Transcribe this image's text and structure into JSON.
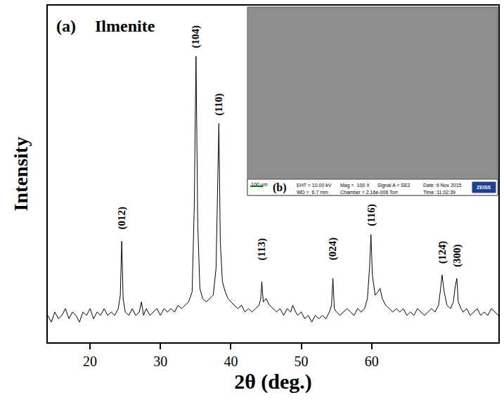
{
  "chart_data": {
    "type": "line",
    "title": "Ilmenite",
    "panel_label": "(a)",
    "x_label": "2θ (deg.)",
    "y_label": "Intensity",
    "color": "#000000",
    "grid": false,
    "tick_labels": "x",
    "xlim": [
      14,
      78
    ],
    "xticks": [
      20,
      30,
      40,
      50,
      60
    ],
    "ylim": [
      0,
      100
    ],
    "x": [
      14.0,
      14.5,
      15.0,
      15.5,
      16.0,
      16.5,
      17.0,
      17.5,
      18.0,
      18.5,
      19.0,
      19.5,
      20.0,
      20.5,
      21.0,
      21.5,
      22.0,
      22.5,
      23.0,
      23.5,
      24.0,
      24.3,
      24.5,
      24.7,
      25.0,
      25.5,
      26.0,
      26.5,
      27.0,
      27.3,
      27.6,
      28.0,
      28.5,
      29.0,
      29.5,
      30.0,
      30.5,
      31.0,
      31.5,
      32.0,
      32.5,
      33.0,
      33.5,
      34.0,
      34.5,
      34.8,
      35.05,
      35.3,
      35.6,
      36.0,
      36.5,
      37.0,
      37.5,
      37.9,
      38.1,
      38.3,
      38.5,
      38.8,
      39.2,
      39.6,
      40.0,
      40.5,
      41.0,
      41.5,
      42.0,
      42.5,
      43.0,
      43.5,
      44.0,
      44.25,
      44.4,
      44.6,
      45.0,
      45.5,
      46.0,
      46.5,
      47.0,
      47.5,
      48.0,
      48.5,
      48.8,
      49.2,
      49.5,
      50.0,
      50.5,
      51.0,
      51.5,
      52.0,
      52.5,
      53.0,
      53.5,
      54.0,
      54.3,
      54.5,
      54.7,
      55.0,
      55.5,
      56.0,
      56.5,
      57.0,
      57.5,
      58.0,
      58.5,
      59.0,
      59.4,
      59.7,
      59.9,
      60.1,
      60.5,
      60.9,
      61.2,
      61.5,
      62.0,
      62.5,
      63.0,
      63.5,
      64.0,
      64.5,
      65.0,
      65.5,
      66.0,
      66.5,
      67.0,
      67.5,
      68.0,
      68.5,
      69.0,
      69.5,
      69.8,
      70.0,
      70.3,
      70.7,
      71.2,
      71.6,
      71.9,
      72.1,
      72.3,
      72.7,
      73.0,
      73.5,
      74.0,
      74.5,
      75.0,
      75.5,
      76.0,
      76.5,
      77.0,
      77.5,
      78.0
    ],
    "values": [
      8,
      6,
      9,
      7,
      8,
      10,
      7,
      9,
      8,
      6,
      9,
      8,
      10,
      7,
      9,
      8,
      10,
      8,
      9,
      8,
      10,
      14,
      30,
      13,
      9,
      8,
      10,
      8,
      9,
      12,
      8,
      10,
      8,
      9,
      10,
      8,
      10,
      9,
      10,
      9,
      11,
      10,
      11,
      12,
      15,
      40,
      85,
      35,
      16,
      13,
      12,
      13,
      14,
      22,
      45,
      65,
      30,
      18,
      15,
      13,
      12,
      11,
      10,
      11,
      9,
      10,
      9,
      10,
      11,
      13,
      18,
      12,
      13,
      11,
      10,
      9,
      10,
      8,
      10,
      9,
      11,
      9,
      8,
      9,
      7,
      8,
      6,
      8,
      7,
      8,
      7,
      9,
      11,
      19,
      10,
      9,
      8,
      9,
      10,
      9,
      8,
      10,
      9,
      10,
      13,
      22,
      32,
      20,
      14,
      15,
      16,
      13,
      11,
      10,
      9,
      10,
      9,
      10,
      8,
      9,
      8,
      10,
      9,
      8,
      9,
      10,
      9,
      11,
      16,
      20,
      15,
      11,
      10,
      12,
      17,
      19,
      12,
      10,
      9,
      10,
      8,
      9,
      10,
      8,
      9,
      8,
      10,
      9,
      8
    ],
    "annotations": [
      {
        "text": "(012)",
        "x": 24.5,
        "y": 33
      },
      {
        "text": "(104)",
        "x": 35.05,
        "y": 87
      },
      {
        "text": "(110)",
        "x": 38.3,
        "y": 67
      },
      {
        "text": "(113)",
        "x": 44.4,
        "y": 24
      },
      {
        "text": "(024)",
        "x": 54.5,
        "y": 24
      },
      {
        "text": "(116)",
        "x": 59.9,
        "y": 34
      },
      {
        "text": "(124̄)",
        "x": 70.0,
        "y": 23
      },
      {
        "text": "(300)",
        "x": 72.1,
        "y": 22
      }
    ]
  },
  "inset": {
    "label": "(b)",
    "scale_bar": "100 µm",
    "fields": [
      "EHT = 10.00 kV",
      "WD =  6.7 mm",
      "Mag =  100 X",
      "Signal A = SE2",
      "Chamber = 2.16e-006 Torr",
      "Date :9 Nov 2015",
      "Time :11:02:39"
    ],
    "logo": "ZEISS"
  }
}
